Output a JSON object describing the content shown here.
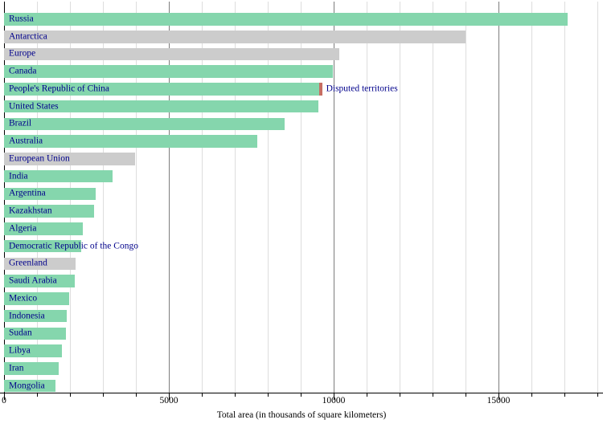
{
  "chart_data": {
    "type": "bar",
    "orientation": "horizontal",
    "xlabel": "Total area (in thousands of square kilometers)",
    "x_ticks": [
      0,
      5000,
      10000,
      15000
    ],
    "x_minor_tick_interval": 1000,
    "xlim": [
      0,
      18000
    ],
    "grid": true,
    "legend": "none",
    "annotation_label": "Disputed territories",
    "bars": [
      {
        "label": "Russia",
        "value": 17098,
        "kind": "country"
      },
      {
        "label": "Antarctica",
        "value": 14000,
        "kind": "non_country"
      },
      {
        "label": "Europe",
        "value": 10180,
        "kind": "non_country"
      },
      {
        "label": "Canada",
        "value": 9985,
        "kind": "country"
      },
      {
        "label": "People's Republic of China",
        "value": 9573,
        "kind": "country",
        "disputed_extra": 75,
        "annotation": "Disputed territories"
      },
      {
        "label": "United States",
        "value": 9526,
        "kind": "country"
      },
      {
        "label": "Brazil",
        "value": 8516,
        "kind": "country"
      },
      {
        "label": "Australia",
        "value": 7692,
        "kind": "country"
      },
      {
        "label": "European Union",
        "value": 3975,
        "kind": "non_country"
      },
      {
        "label": "India",
        "value": 3287,
        "kind": "country"
      },
      {
        "label": "Argentina",
        "value": 2780,
        "kind": "country"
      },
      {
        "label": "Kazakhstan",
        "value": 2725,
        "kind": "country"
      },
      {
        "label": "Algeria",
        "value": 2382,
        "kind": "country"
      },
      {
        "label": "Democratic Republic of the Congo",
        "value": 2345,
        "kind": "country"
      },
      {
        "label": "Greenland",
        "value": 2166,
        "kind": "non_country"
      },
      {
        "label": "Saudi Arabia",
        "value": 2150,
        "kind": "country"
      },
      {
        "label": "Mexico",
        "value": 1964,
        "kind": "country"
      },
      {
        "label": "Indonesia",
        "value": 1905,
        "kind": "country"
      },
      {
        "label": "Sudan",
        "value": 1886,
        "kind": "country"
      },
      {
        "label": "Libya",
        "value": 1760,
        "kind": "country"
      },
      {
        "label": "Iran",
        "value": 1648,
        "kind": "country"
      },
      {
        "label": "Mongolia",
        "value": 1564,
        "kind": "country"
      }
    ],
    "colors": {
      "country": "#85d6ad",
      "non_country": "#cccccc",
      "disputed": "#c66e63",
      "label_text": "#00008b",
      "grid_minor": "#dddddd",
      "grid_major": "#7d7d7d",
      "axis": "#000000"
    }
  }
}
